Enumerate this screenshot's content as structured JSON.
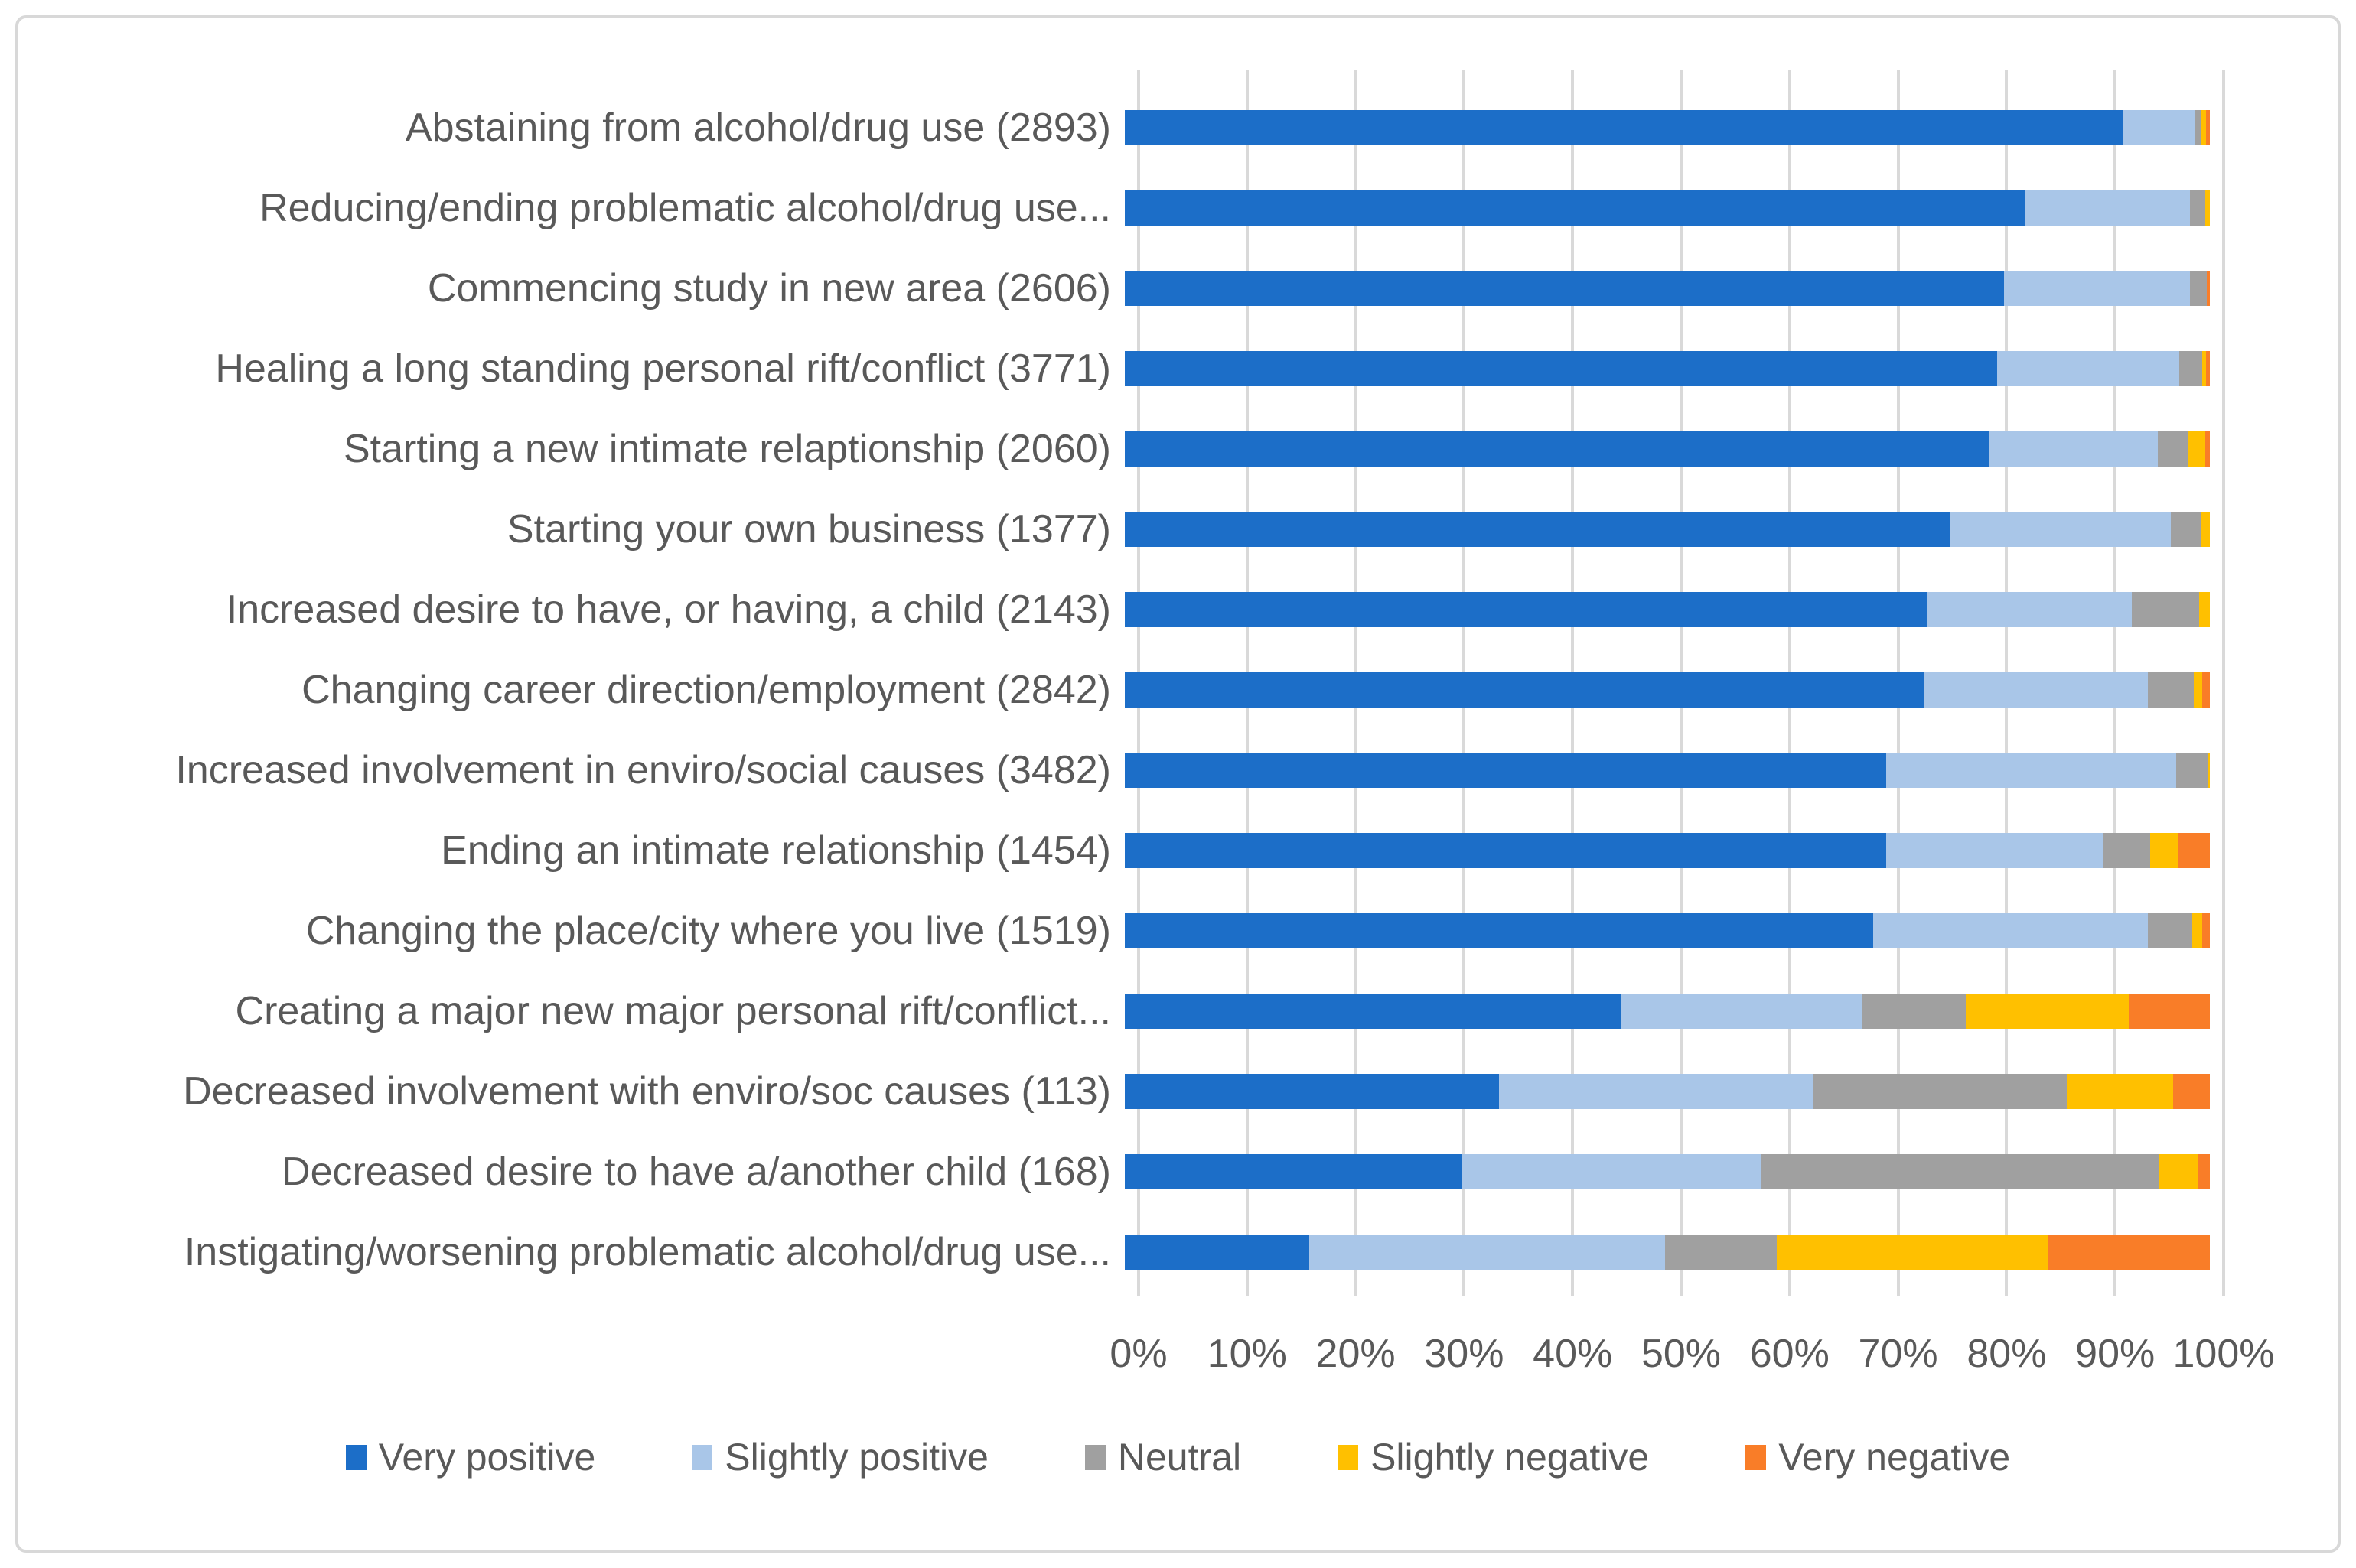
{
  "colors": {
    "very_positive": "#1c6ec8",
    "slightly_positive": "#a9c6e8",
    "neutral": "#a0a0a0",
    "slightly_negative": "#ffc000",
    "very_negative": "#f97d28",
    "gridline": "#d9d9d9",
    "text": "#595959",
    "panel_border": "#d8d8d8"
  },
  "chart_data": {
    "type": "bar",
    "orientation": "horizontal",
    "stacked": true,
    "grid": true,
    "legend_position": "bottom",
    "xlabel": "",
    "ylabel": "",
    "xlim": [
      0,
      100
    ],
    "x_ticks": [
      "0%",
      "10%",
      "20%",
      "30%",
      "40%",
      "50%",
      "60%",
      "70%",
      "80%",
      "90%",
      "100%"
    ],
    "series_names": [
      "Very positive",
      "Slightly positive",
      "Neutral",
      "Slightly negative",
      "Very negative"
    ],
    "series_keys": [
      "very_positive",
      "slightly_positive",
      "neutral",
      "slightly_negative",
      "very_negative"
    ],
    "categories": [
      "Abstaining from alcohol/drug use (2893)",
      "Reducing/ending problematic alcohol/drug use...",
      "Commencing study in new area (2606)",
      "Healing a long standing personal rift/conflict (3771)",
      "Starting a new intimate relaptionship (2060)",
      "Starting your own business (1377)",
      "Increased desire to have, or having, a child (2143)",
      "Changing career direction/employment (2842)",
      "Increased involvement in enviro/social causes (3482)",
      "Ending an intimate relationship (1454)",
      "Changing the place/city where you live (1519)",
      "Creating a major new major personal rift/conflict...",
      "Decreased involvement with enviro/soc causes (113)",
      "Decreased desire to have a/another child (168)",
      "Instigating/worsening problematic alcohol/drug use..."
    ],
    "series": [
      {
        "name": "Very positive",
        "values": [
          92.0,
          83.0,
          81.0,
          80.4,
          79.7,
          76.0,
          73.9,
          73.6,
          70.2,
          70.2,
          69.0,
          45.7,
          34.5,
          31.0,
          17.0
        ]
      },
      {
        "name": "Slightly positive",
        "values": [
          6.65,
          15.2,
          17.2,
          16.8,
          15.5,
          20.4,
          18.9,
          20.7,
          26.7,
          20.0,
          25.3,
          22.2,
          29.0,
          27.7,
          32.8
        ]
      },
      {
        "name": "Neutral",
        "values": [
          0.6,
          1.4,
          1.5,
          2.1,
          2.8,
          2.8,
          6.2,
          4.2,
          2.9,
          4.3,
          4.1,
          9.6,
          23.3,
          36.6,
          10.3
        ]
      },
      {
        "name": "Slightly negative",
        "values": [
          0.4,
          0.4,
          0.0,
          0.35,
          1.6,
          0.8,
          1.0,
          0.8,
          0.2,
          2.6,
          0.9,
          15.0,
          9.8,
          3.6,
          25.0
        ]
      },
      {
        "name": "Very negative",
        "values": [
          0.35,
          0.0,
          0.3,
          0.35,
          0.4,
          0.0,
          0.0,
          0.7,
          0.0,
          2.9,
          0.7,
          7.5,
          3.4,
          1.1,
          14.9
        ]
      }
    ]
  }
}
